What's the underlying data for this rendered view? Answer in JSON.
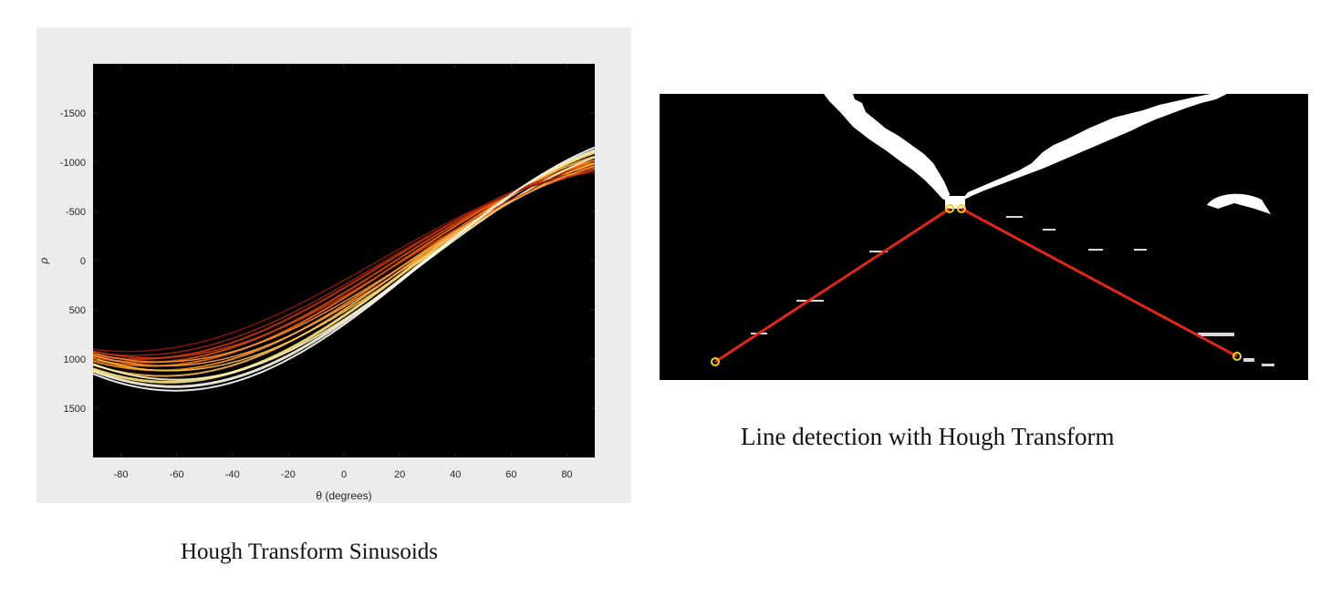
{
  "left_figure": {
    "caption": "Hough Transform Sinusoids",
    "xlabel": "θ (degrees)",
    "ylabel": "ρ",
    "x_ticks": [
      "-80",
      "-60",
      "-40",
      "-20",
      "0",
      "20",
      "40",
      "60",
      "80"
    ],
    "y_ticks": [
      "-1500",
      "-1000",
      "-500",
      "0",
      "500",
      "1000",
      "1500"
    ],
    "colors": {
      "background": "#000000",
      "panel": "#ececec",
      "hot_dark": "#b3260d",
      "hot_mid": "#ff8c1a",
      "hot_light": "#ffffff"
    }
  },
  "right_figure": {
    "caption": "Line detection with Hough Transform",
    "colors": {
      "line": "#e0261b",
      "endpoint": "#f5d31c",
      "background": "#000000",
      "foreground": "#ffffff"
    }
  }
}
